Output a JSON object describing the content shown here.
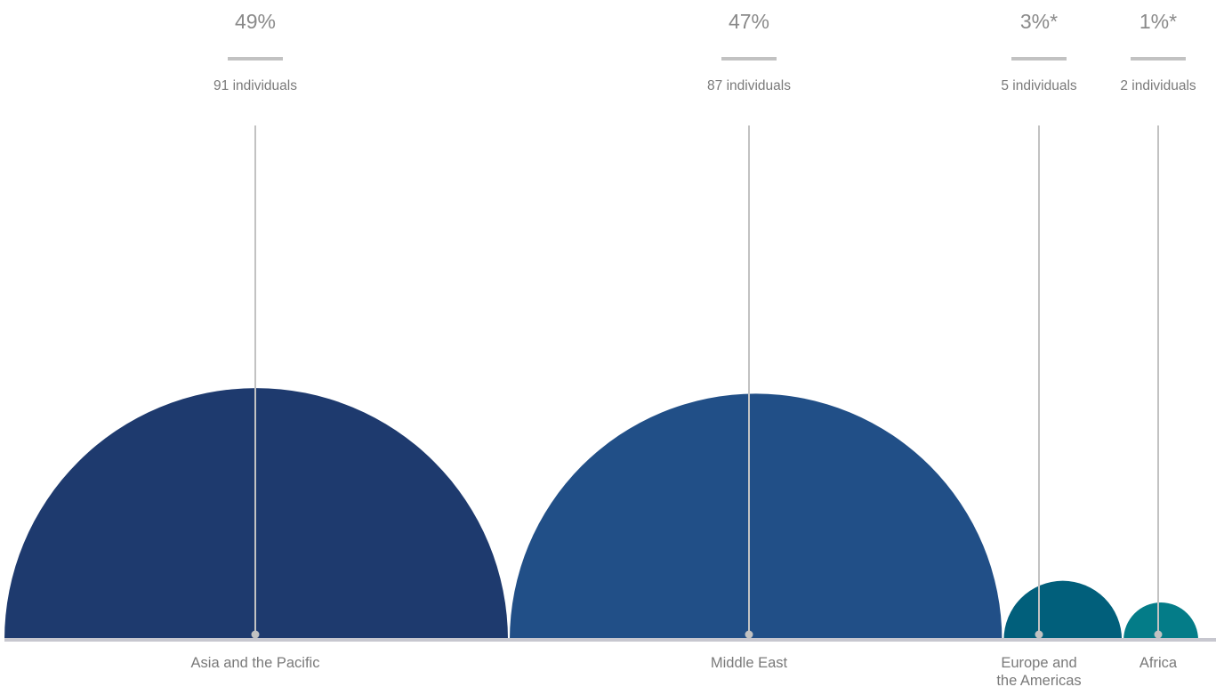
{
  "chart_data": {
    "type": "semicircle-bubble",
    "title": "",
    "xlabel": "",
    "ylabel": "",
    "unit": "individuals",
    "categories": [
      {
        "label": [
          "Asia and the Pacific"
        ],
        "percent_label": "49%",
        "count_label": "91 individuals",
        "value": 91,
        "percent": 49,
        "color": "#1e3a6e"
      },
      {
        "label": [
          "Middle East"
        ],
        "percent_label": "47%",
        "count_label": "87 individuals",
        "value": 87,
        "percent": 47,
        "color": "#214f87"
      },
      {
        "label": [
          "Europe and",
          "the Americas"
        ],
        "percent_label": "3%*",
        "count_label": "5 individuals",
        "value": 5,
        "percent": 3,
        "color": "#015f7b"
      },
      {
        "label": [
          "Africa"
        ],
        "percent_label": "1%*",
        "count_label": "2 individuals",
        "value": 2,
        "percent": 1,
        "color": "#047c88"
      }
    ],
    "colors": {
      "connector": "#c2c2c2",
      "baseline": "#c7c7cf",
      "percent_bar": "#c2c2c2"
    }
  }
}
